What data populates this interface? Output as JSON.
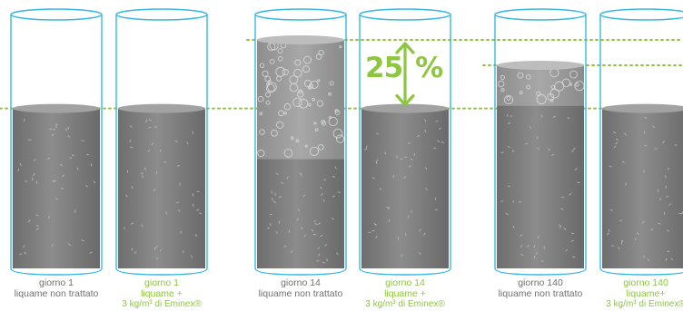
{
  "colors": {
    "tube_outline": "#35b8e6",
    "guide_line": "#8dc63f",
    "liquid_gray": "#8a8a8a",
    "caption_untreated": "#707070",
    "caption_treated": "#8dc63f"
  },
  "annotation": {
    "value": "25",
    "unit": "%"
  },
  "cylinders": [
    {
      "id": "day1-untreated",
      "day_label": "giorno 1",
      "line2": "liquame non trattato",
      "line3": "",
      "treated": false,
      "liquid_level": 0.63,
      "foam_layer": 0.0
    },
    {
      "id": "day1-treated",
      "day_label": "giorno 1",
      "line2": "liquame +",
      "line3": "3 kg/m³ di Eminex®",
      "treated": true,
      "liquid_level": 0.63,
      "foam_layer": 0.0
    },
    {
      "id": "day14-untreated",
      "day_label": "giorno 14",
      "line2": "liquame non trattato",
      "line3": "",
      "treated": false,
      "liquid_level": 0.9,
      "foam_layer": 0.47
    },
    {
      "id": "day14-treated",
      "day_label": "giorno 14",
      "line2": "liquame +",
      "line3": "3 kg/m³ di Eminex®",
      "treated": true,
      "liquid_level": 0.63,
      "foam_layer": 0.0
    },
    {
      "id": "day140-untreated",
      "day_label": "giorno 140",
      "line2": "liquame non trattato",
      "line3": "",
      "treated": false,
      "liquid_level": 0.8,
      "foam_layer": 0.16
    },
    {
      "id": "day140-treated",
      "day_label": "giorno 140",
      "line2": "liquame+",
      "line3": "3 kg/m³ di Eminex®",
      "treated": true,
      "liquid_level": 0.63,
      "foam_layer": 0.0
    }
  ]
}
